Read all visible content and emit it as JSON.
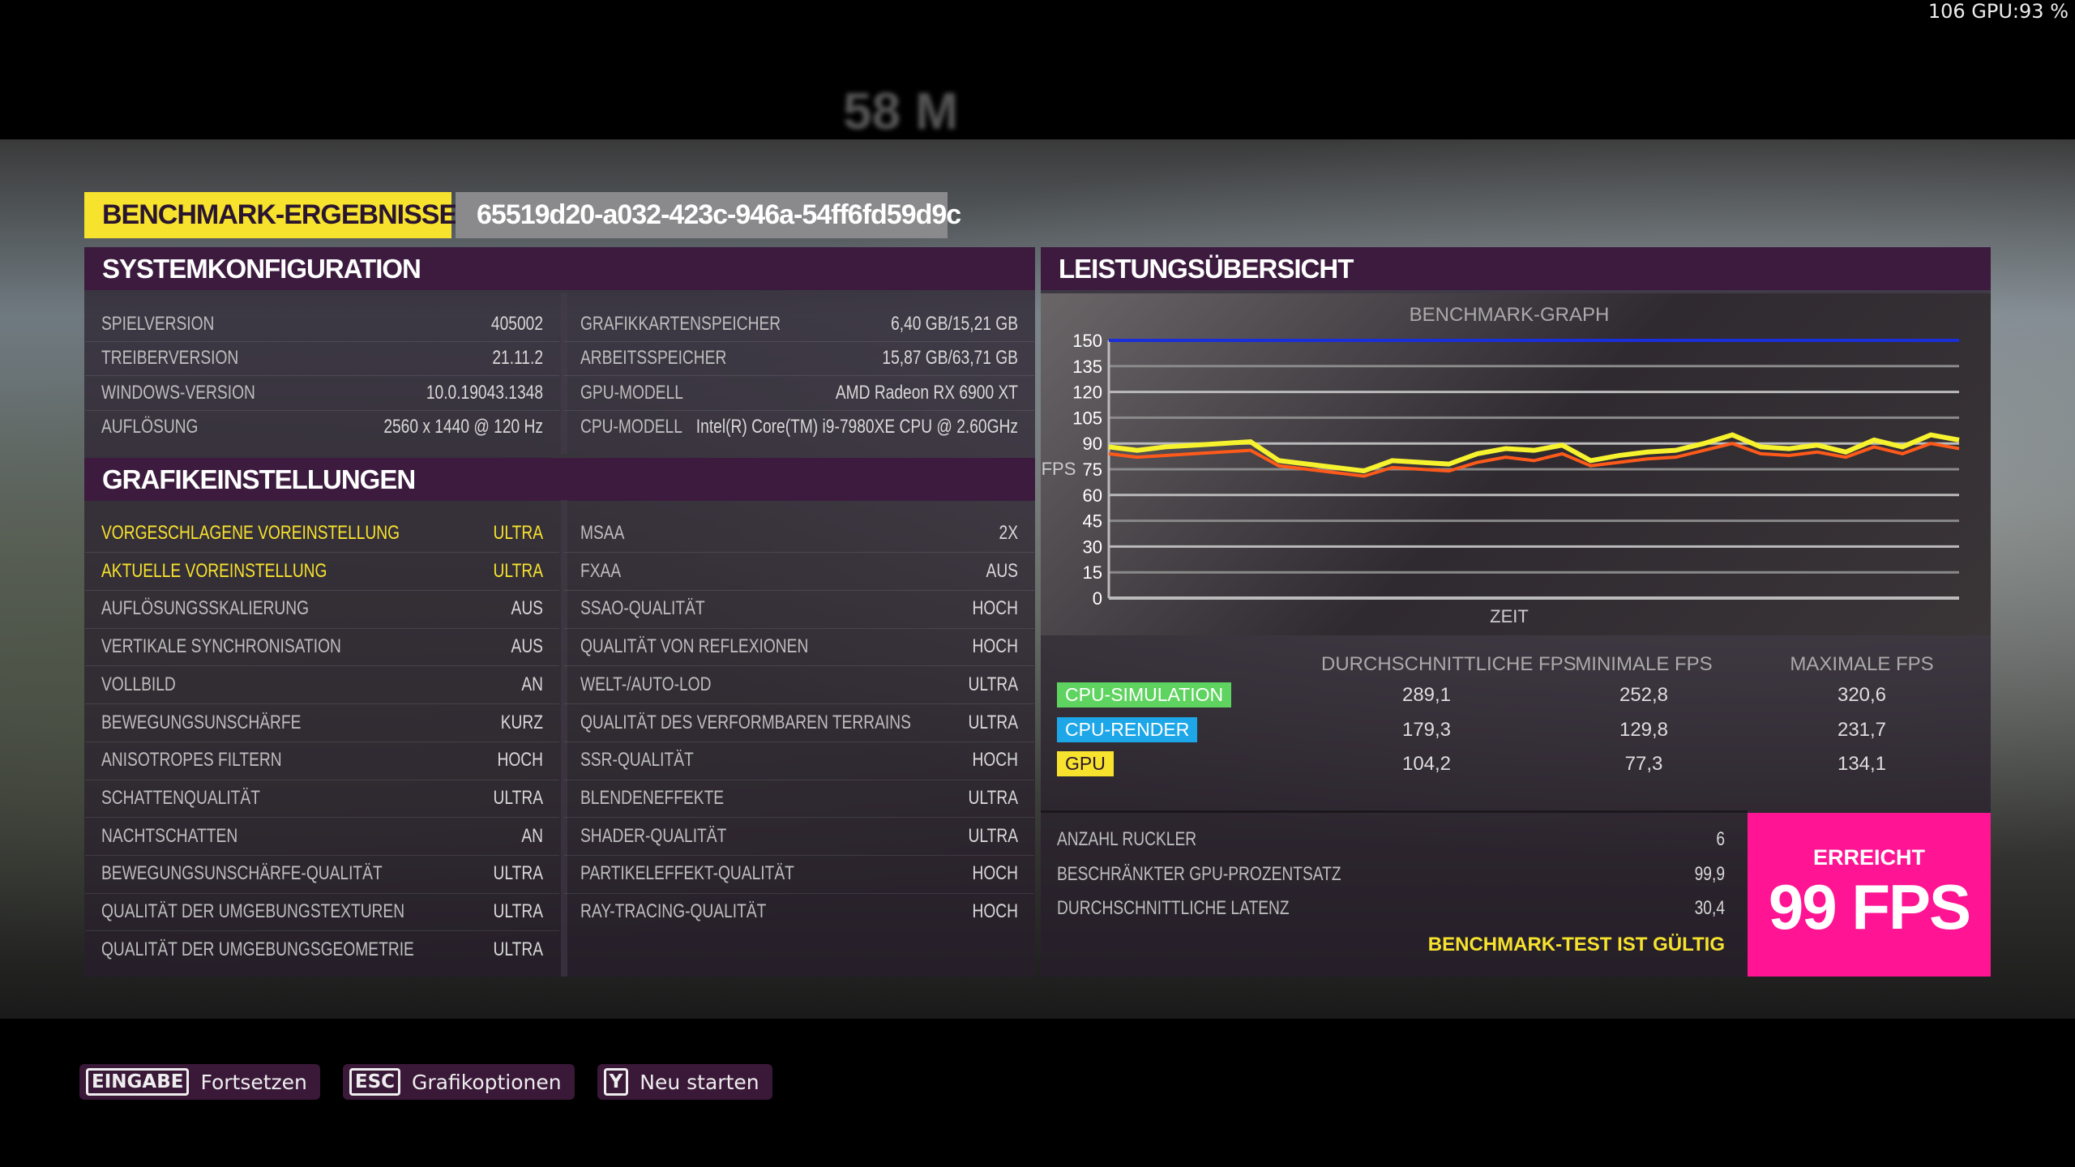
{
  "overlay": {
    "fps_gpu": "106 GPU:93 %",
    "hud_distance": "58 M"
  },
  "header": {
    "title": "BENCHMARK-ERGEBNISSE",
    "run_id": "65519d20-a032-423c-946a-54ff6fd59d9c"
  },
  "system": {
    "title": "SYSTEMKONFIGURATION",
    "left": [
      {
        "label": "SPIELVERSION",
        "value": "405002"
      },
      {
        "label": "TREIBERVERSION",
        "value": "21.11.2"
      },
      {
        "label": "WINDOWS-VERSION",
        "value": "10.0.19043.1348"
      },
      {
        "label": "AUFLÖSUNG",
        "value": "2560 x 1440 @ 120 Hz"
      }
    ],
    "right": [
      {
        "label": "GRAFIKKARTENSPEICHER",
        "value": "6,40 GB/15,21 GB"
      },
      {
        "label": "ARBEITSSPEICHER",
        "value": "15,87 GB/63,71 GB"
      },
      {
        "label": "GPU-MODELL",
        "value": "AMD Radeon RX 6900 XT"
      },
      {
        "label": "CPU-MODELL",
        "value": "Intel(R) Core(TM) i9-7980XE CPU @ 2.60GHz"
      }
    ]
  },
  "graphics": {
    "title": "GRAFIKEINSTELLUNGEN",
    "left": [
      {
        "label": "VORGESCHLAGENE VOREINSTELLUNG",
        "value": "ULTRA",
        "highlight": true
      },
      {
        "label": "AKTUELLE VOREINSTELLUNG",
        "value": "ULTRA",
        "highlight": true
      },
      {
        "label": "AUFLÖSUNGSSKALIERUNG",
        "value": "AUS"
      },
      {
        "label": "VERTIKALE SYNCHRONISATION",
        "value": "AUS"
      },
      {
        "label": "VOLLBILD",
        "value": "AN"
      },
      {
        "label": "BEWEGUNGSUNSCHÄRFE",
        "value": "KURZ"
      },
      {
        "label": "ANISOTROPES FILTERN",
        "value": "HOCH"
      },
      {
        "label": "SCHATTENQUALITÄT",
        "value": "ULTRA"
      },
      {
        "label": "NACHTSCHATTEN",
        "value": "AN"
      },
      {
        "label": "BEWEGUNGSUNSCHÄRFE-QUALITÄT",
        "value": "ULTRA"
      },
      {
        "label": "QUALITÄT DER UMGEBUNGSTEXTUREN",
        "value": "ULTRA"
      },
      {
        "label": "QUALITÄT DER UMGEBUNGSGEOMETRIE",
        "value": "ULTRA"
      }
    ],
    "right": [
      {
        "label": "MSAA",
        "value": "2X"
      },
      {
        "label": "FXAA",
        "value": "AUS"
      },
      {
        "label": "SSAO-QUALITÄT",
        "value": "HOCH"
      },
      {
        "label": "QUALITÄT VON REFLEXIONEN",
        "value": "HOCH"
      },
      {
        "label": "WELT-/AUTO-LOD",
        "value": "ULTRA"
      },
      {
        "label": "QUALITÄT DES VERFORMBAREN TERRAINS",
        "value": "ULTRA"
      },
      {
        "label": "SSR-QUALITÄT",
        "value": "HOCH"
      },
      {
        "label": "BLENDENEFFEKTE",
        "value": "ULTRA"
      },
      {
        "label": "SHADER-QUALITÄT",
        "value": "ULTRA"
      },
      {
        "label": "PARTIKELEFFEKT-QUALITÄT",
        "value": "HOCH"
      },
      {
        "label": "RAY-TRACING-QUALITÄT",
        "value": "HOCH"
      }
    ]
  },
  "performance": {
    "title": "LEISTUNGSÜBERSICHT",
    "columns": [
      "DURCHSCHNITTLICHE FPS",
      "MINIMALE FPS",
      "MAXIMALE FPS"
    ],
    "rows": [
      {
        "name": "CPU-SIMULATION",
        "color": "#5fd35f",
        "avg": "289,1",
        "min": "252,8",
        "max": "320,6"
      },
      {
        "name": "CPU-RENDER",
        "color": "#1ea7e8",
        "avg": "179,3",
        "min": "129,8",
        "max": "231,7"
      },
      {
        "name": "GPU",
        "color": "#f7e22e",
        "text_color": "#2a1530",
        "avg": "104,2",
        "min": "77,3",
        "max": "134,1"
      }
    ],
    "stats": [
      {
        "label": "ANZAHL RUCKLER",
        "value": "6"
      },
      {
        "label": "BESCHRÄNKTER GPU-PROZENTSATZ",
        "value": "99,9"
      },
      {
        "label": "DURCHSCHNITTLICHE LATENZ",
        "value": "30,4"
      }
    ],
    "valid": "BENCHMARK-TEST IST GÜLTIG",
    "achieved_label": "ERREICHT",
    "achieved_value": "99 FPS"
  },
  "chart_data": {
    "type": "line",
    "title": "BENCHMARK-GRAPH",
    "xlabel": "ZEIT",
    "ylabel": "FPS",
    "ylim": [
      0,
      150
    ],
    "yticks": [
      0,
      15,
      30,
      45,
      60,
      75,
      90,
      105,
      120,
      135,
      150
    ],
    "grid": true,
    "series": [
      {
        "color": "#1a2fd8",
        "values": [
          150,
          150,
          150,
          150,
          150,
          150,
          150,
          150,
          150,
          150,
          150,
          150,
          150,
          150,
          150,
          150,
          150,
          150,
          150,
          150,
          150,
          150,
          150,
          150,
          150,
          150,
          150,
          150,
          150,
          150,
          150
        ]
      },
      {
        "color": "#f7f22e",
        "values": [
          88,
          86,
          88,
          89,
          90,
          91,
          80,
          78,
          76,
          74,
          80,
          79,
          78,
          84,
          87,
          86,
          89,
          80,
          83,
          85,
          86,
          90,
          95,
          88,
          87,
          89,
          85,
          92,
          88,
          95,
          92
        ]
      },
      {
        "color": "#ff5a1a",
        "values": [
          84,
          82,
          83,
          84,
          85,
          86,
          77,
          75,
          73,
          71,
          76,
          75,
          74,
          79,
          82,
          80,
          84,
          77,
          79,
          81,
          82,
          86,
          90,
          84,
          83,
          85,
          82,
          88,
          84,
          90,
          87
        ]
      }
    ]
  },
  "footer": {
    "buttons": [
      {
        "key": "EINGABE",
        "label": "Fortsetzen"
      },
      {
        "key": "ESC",
        "label": "Grafikoptionen"
      },
      {
        "key": "Y",
        "label": "Neu starten"
      }
    ]
  }
}
